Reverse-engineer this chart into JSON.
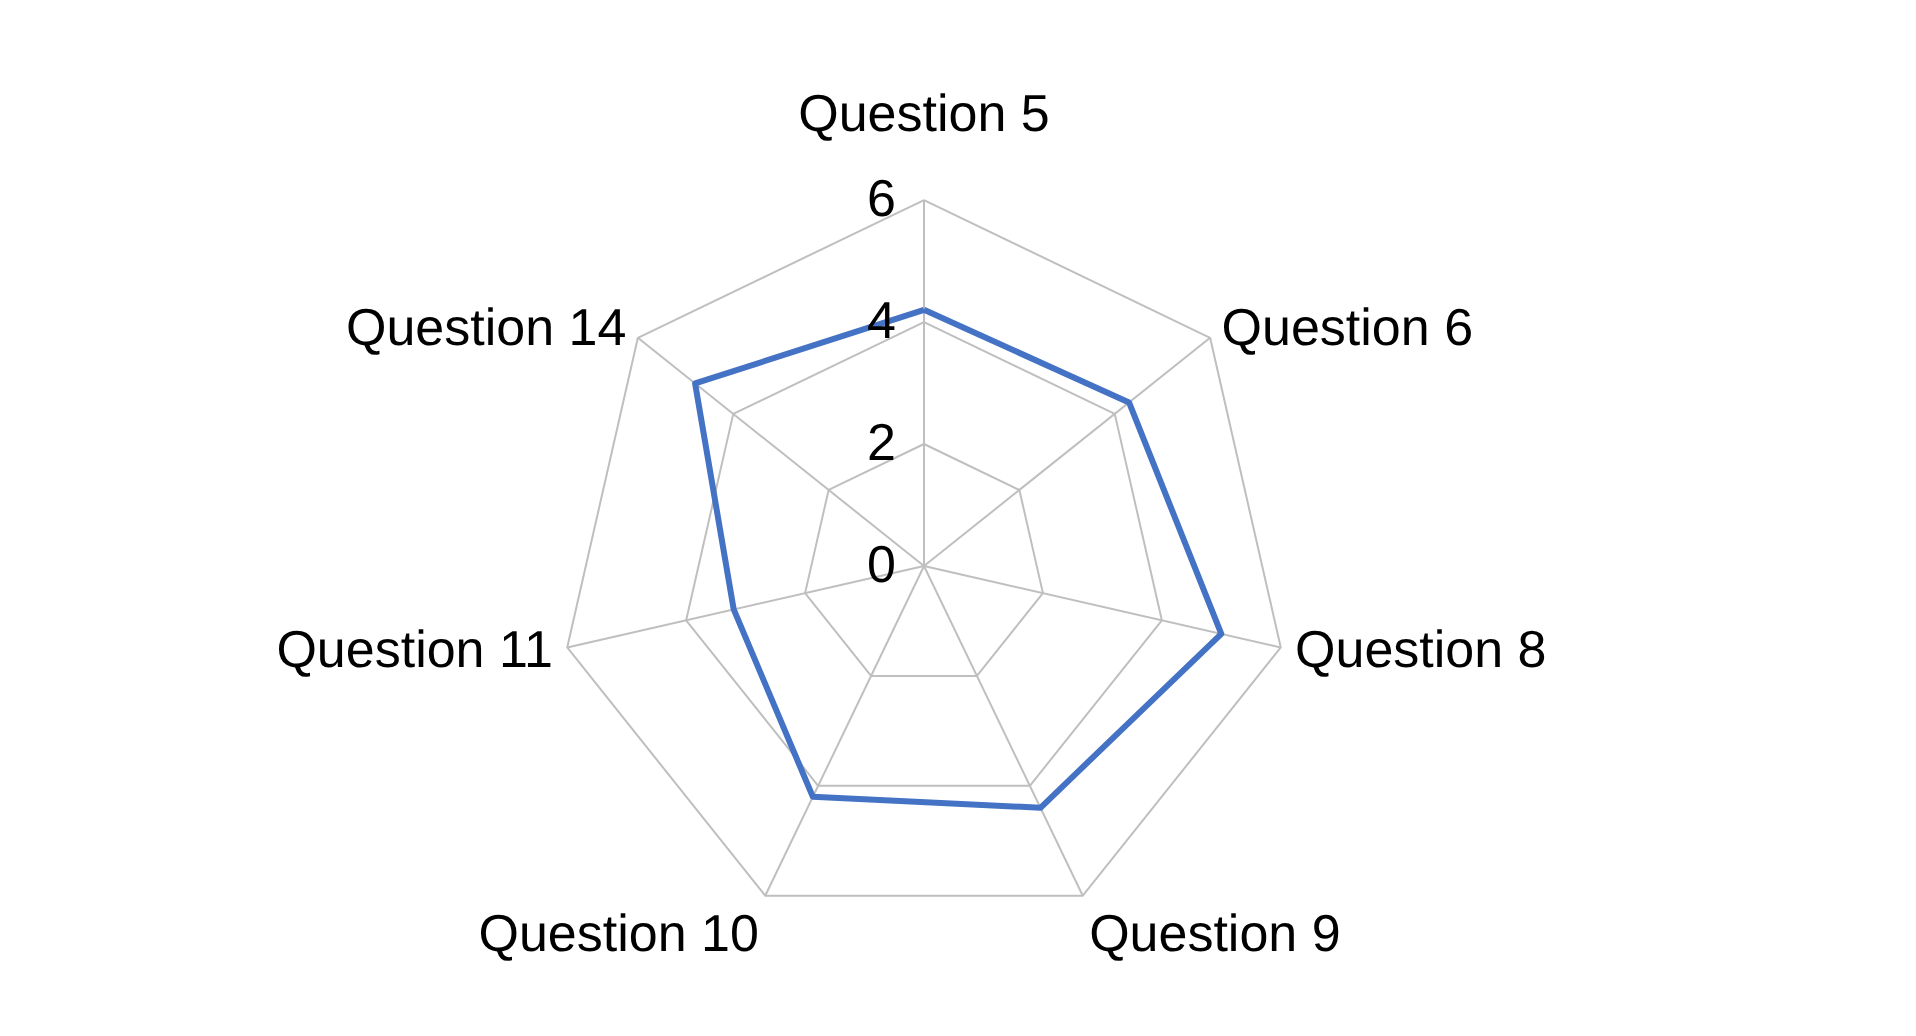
{
  "chart_data": {
    "type": "radar",
    "categories": [
      "Question 5",
      "Question 6",
      "Question 8",
      "Question 9",
      "Question 10",
      "Question 11",
      "Question 14"
    ],
    "series": [
      {
        "color": "#4472c4",
        "values": [
          4.2,
          4.3,
          5.0,
          4.4,
          4.2,
          3.2,
          4.8
        ]
      }
    ],
    "ylim": [
      0,
      6
    ],
    "yticks": [
      0,
      2,
      4,
      6
    ],
    "grid": true
  }
}
